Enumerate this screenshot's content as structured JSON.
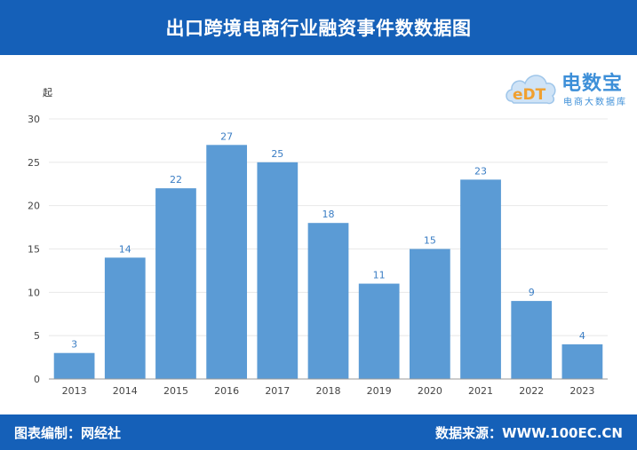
{
  "header": {
    "title": "出口跨境电商行业融资事件数数据图"
  },
  "footer": {
    "editor": "图表编制：网经社",
    "source": "数据来源：WWW.100EC.CN"
  },
  "logo": {
    "brand": "电数宝",
    "sub": "电商大数据库",
    "mark": "eDT"
  },
  "colors": {
    "header": "#1560b8",
    "bar": "#5b9bd5",
    "label": "#3a7dc4"
  },
  "chart_data": {
    "type": "bar",
    "title": "",
    "xlabel": "",
    "ylabel": "起",
    "categories": [
      "2013",
      "2014",
      "2015",
      "2016",
      "2017",
      "2018",
      "2019",
      "2020",
      "2021",
      "2022",
      "2023"
    ],
    "values": [
      3,
      14,
      22,
      27,
      25,
      18,
      11,
      15,
      23,
      9,
      4
    ],
    "ylim": [
      0,
      30
    ],
    "yticks": [
      0,
      5,
      10,
      15,
      20,
      25,
      30
    ],
    "grid": true,
    "legend": "none"
  }
}
